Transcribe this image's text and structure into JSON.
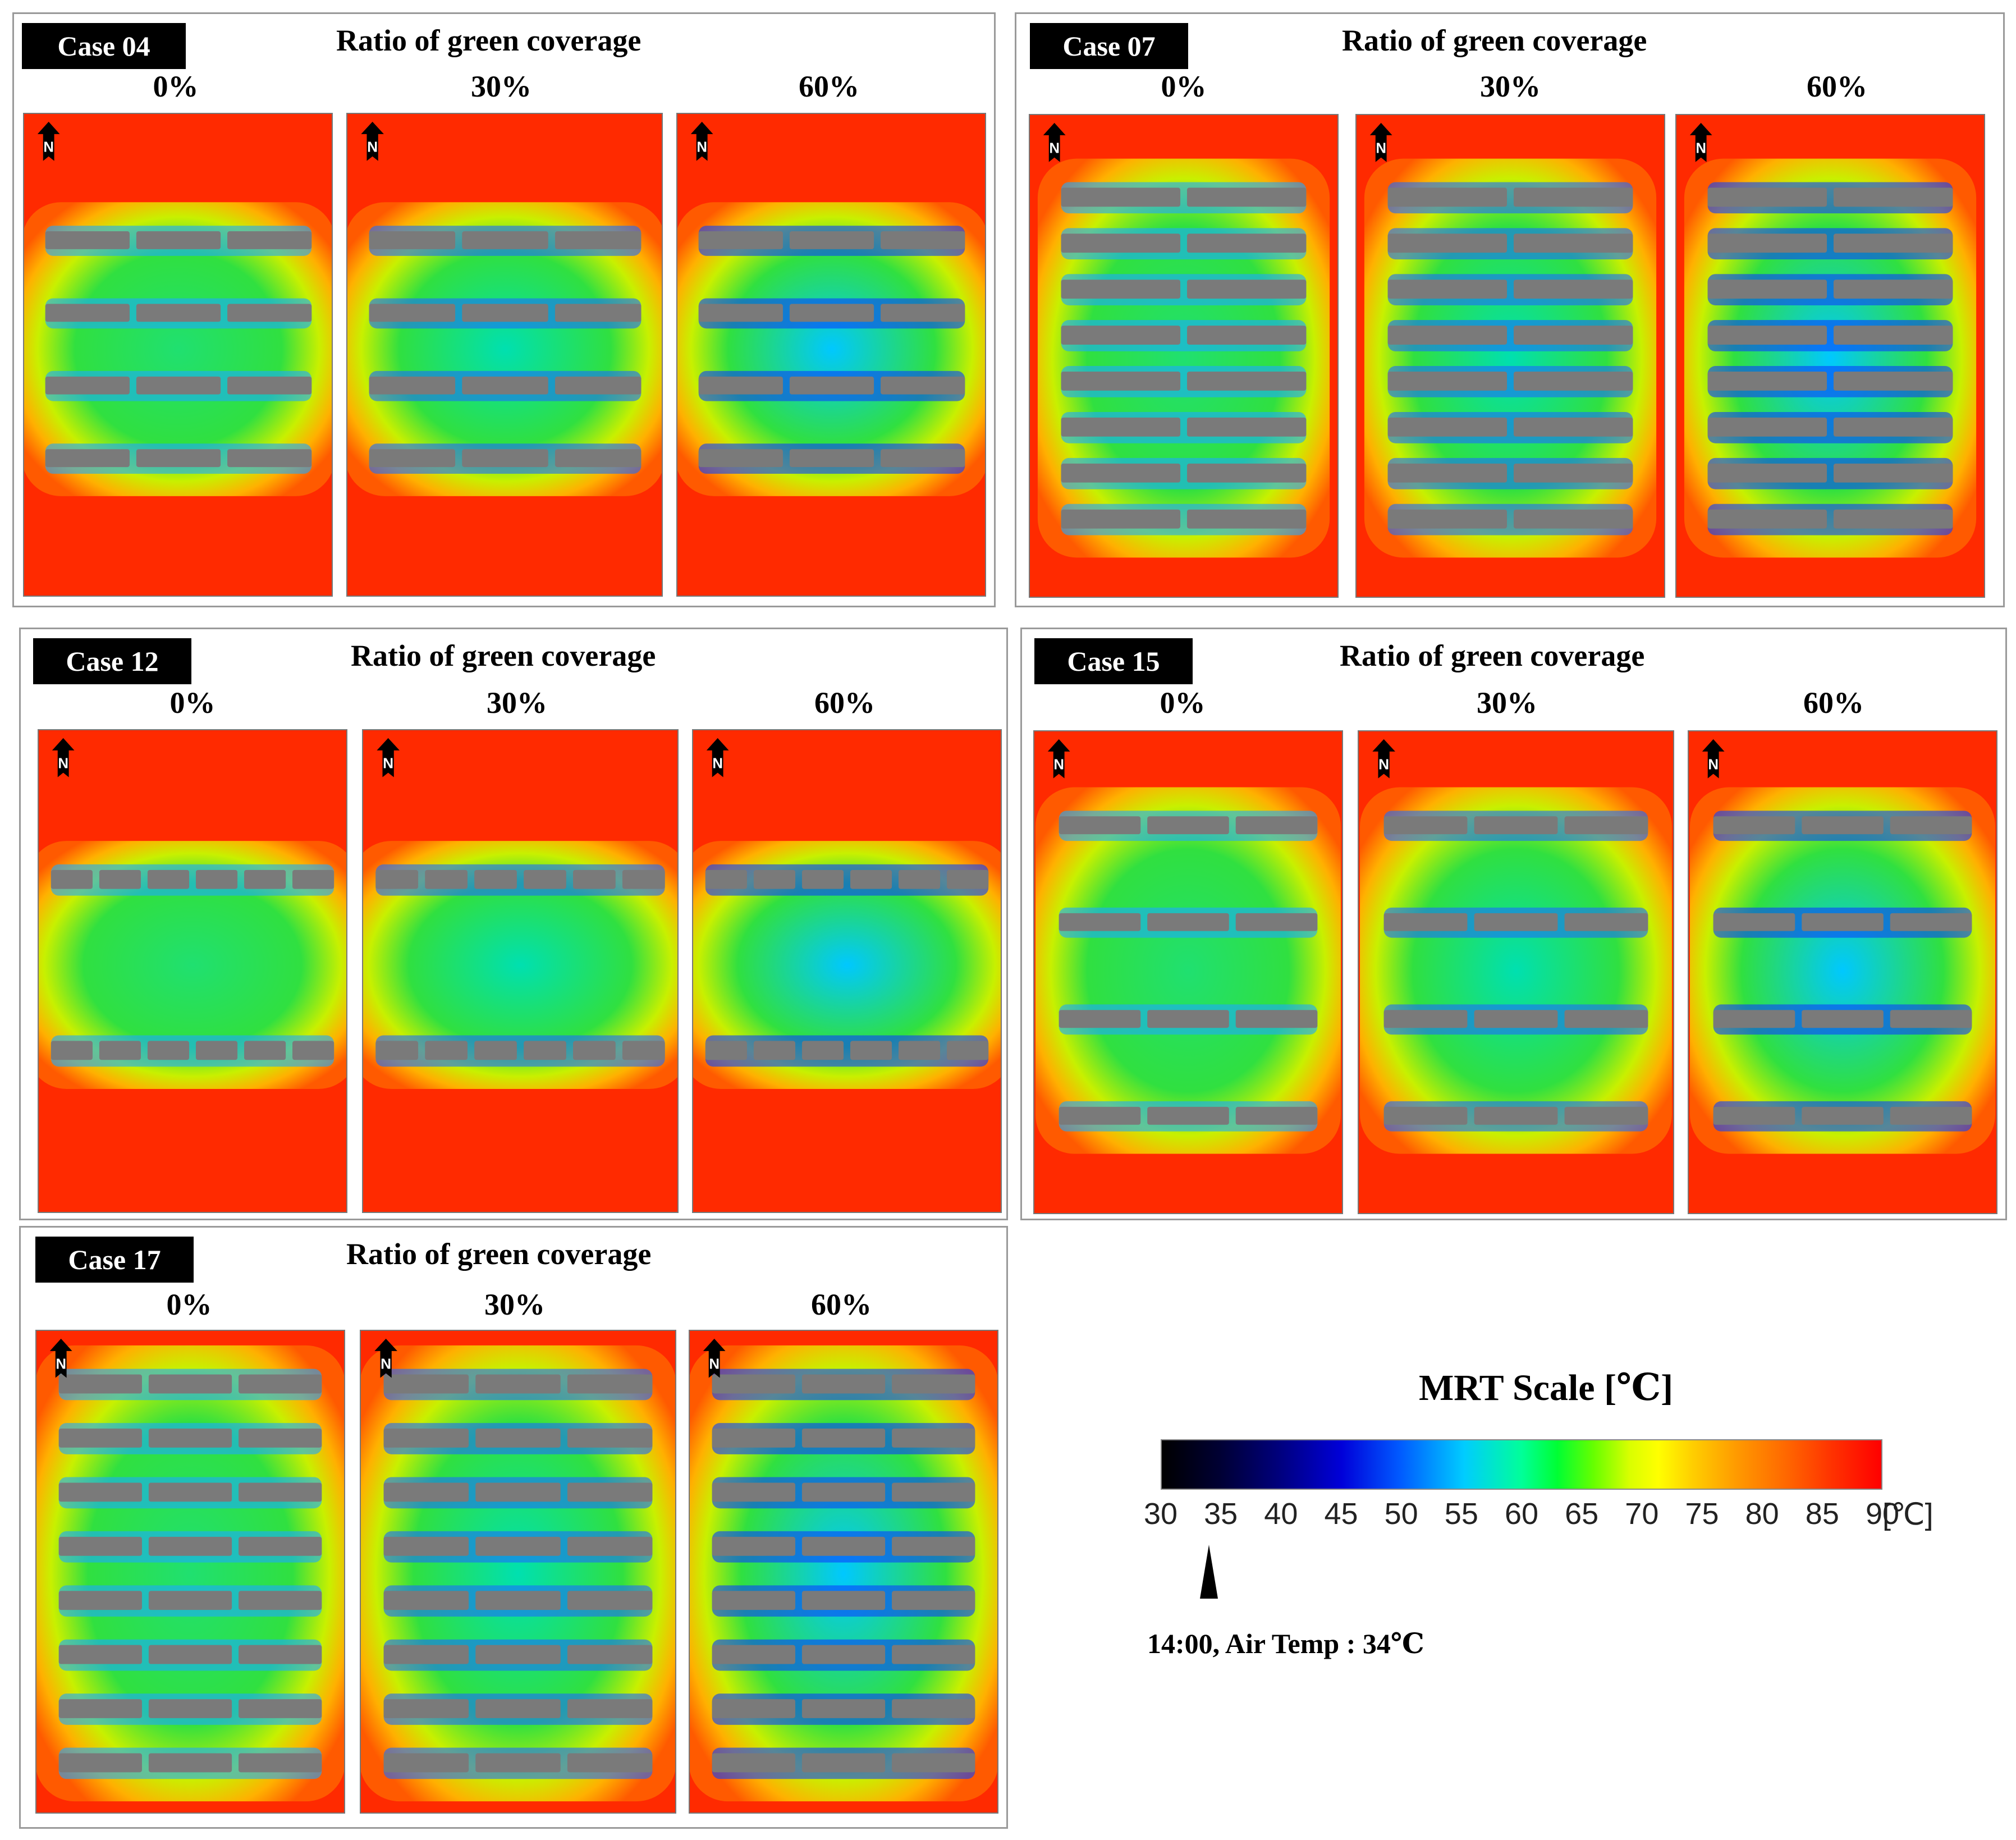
{
  "section_title": "Ratio of  green coverage",
  "percent_labels": [
    "0%",
    "30%",
    "60%"
  ],
  "north_label": "N",
  "cases": [
    {
      "label": "Case 04",
      "rows": 4,
      "cols": 3
    },
    {
      "label": "Case 07",
      "rows": 8,
      "cols": 2
    },
    {
      "label": "Case 12",
      "rows": 2,
      "cols": 6
    },
    {
      "label": "Case 15",
      "rows": 4,
      "cols": 3
    },
    {
      "label": "Case 17",
      "rows": 8,
      "cols": 3
    }
  ],
  "legend": {
    "title": "MRT Scale [℃]",
    "ticks": [
      "30",
      "35",
      "40",
      "45",
      "50",
      "55",
      "60",
      "65",
      "70",
      "75",
      "80",
      "85",
      "90"
    ],
    "unit": "[℃]",
    "range": [
      30,
      90
    ],
    "marker_value": 34,
    "note": "14:00, Air Temp : 34℃"
  },
  "colors": {
    "hot": "#ff2a00",
    "building": "#7a7a7a",
    "cool": "#0018e0",
    "green": "#1ee05a"
  }
}
